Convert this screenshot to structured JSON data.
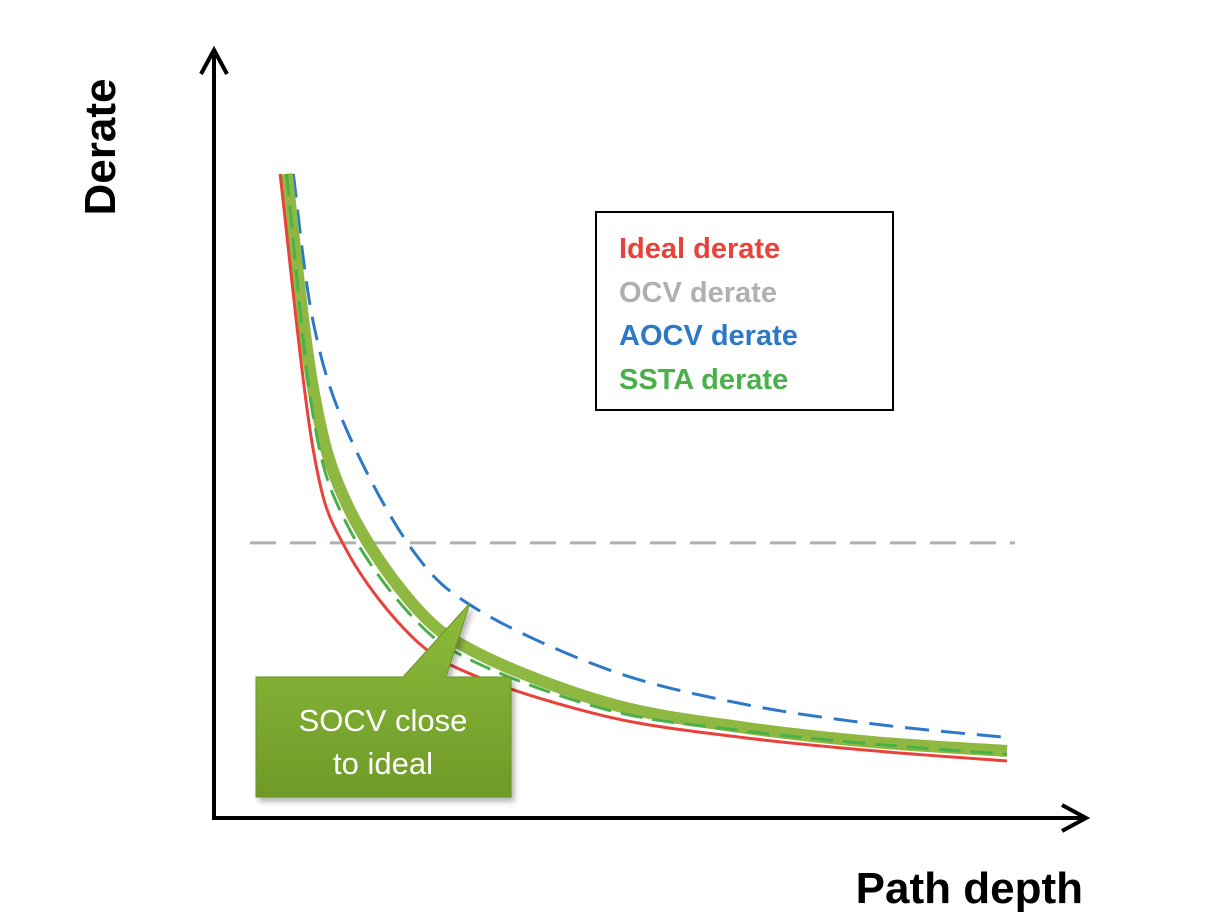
{
  "chart_data": {
    "type": "line",
    "title": "",
    "xlabel": "Path depth",
    "ylabel": "Derate",
    "x": [
      1,
      1.5,
      2,
      3,
      4,
      6,
      8,
      10,
      12
    ],
    "xlim": [
      0,
      12.5
    ],
    "ylim": [
      0,
      1.1
    ],
    "grid": false,
    "legend_position": "top-right",
    "series": [
      {
        "name": "Ideal derate",
        "color": "#e8423a",
        "style": "solid",
        "values": [
          0.96,
          0.55,
          0.4,
          0.27,
          0.21,
          0.15,
          0.12,
          0.1,
          0.085
        ]
      },
      {
        "name": "OCV derate",
        "color": "#b0b0b0",
        "style": "dashed",
        "values": [
          0.41,
          0.41,
          0.41,
          0.41,
          0.41,
          0.41,
          0.41,
          0.41,
          0.41
        ]
      },
      {
        "name": "AOCV derate",
        "color": "#2e78c8",
        "style": "dashed",
        "values": [
          0.96,
          0.74,
          0.58,
          0.4,
          0.31,
          0.22,
          0.17,
          0.14,
          0.12
        ]
      },
      {
        "name": "SSTA derate",
        "color": "#4ab04a",
        "style": "dashed",
        "values": [
          0.96,
          0.6,
          0.44,
          0.3,
          0.23,
          0.16,
          0.13,
          0.11,
          0.095
        ]
      }
    ],
    "annotations": [
      {
        "text": "SOCV close to ideal",
        "lines": [
          "SOCV close",
          "to ideal"
        ],
        "style": "callout",
        "color": "#7aa52e",
        "points_to": "SOCV derate curve",
        "curve_color": "#8fb842",
        "curve_values": [
          0.96,
          0.64,
          0.47,
          0.32,
          0.245,
          0.17,
          0.135,
          0.113,
          0.1
        ]
      }
    ]
  },
  "colors": {
    "axis": "#000000",
    "legend_border": "#000000",
    "callout_fill": "#7aa52e",
    "callout_text": "#ffffff"
  }
}
